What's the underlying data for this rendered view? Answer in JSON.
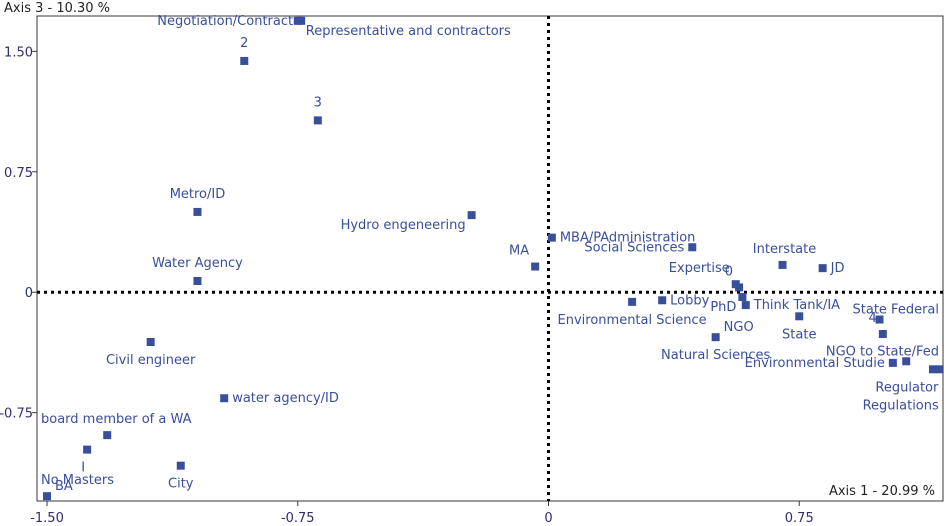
{
  "chart_data": {
    "type": "scatter",
    "xlabel": "Axis 1 - 20.99 %",
    "ylabel": "Axis 3 - 10.30 %",
    "xlim": [
      -1.53,
      1.18
    ],
    "ylim": [
      -1.3,
      1.72
    ],
    "x_ticks": [
      {
        "value": -1.5,
        "label": "-1.50"
      },
      {
        "value": -0.75,
        "label": "-0.75"
      },
      {
        "value": 0,
        "label": "0"
      },
      {
        "value": 0.75,
        "label": "0.75"
      }
    ],
    "y_ticks": [
      {
        "value": 1.5,
        "label": "1.50"
      },
      {
        "value": 0.75,
        "label": "0.75"
      },
      {
        "value": 0,
        "label": "0"
      },
      {
        "value": -0.75,
        "label": "-0.75"
      }
    ],
    "grid": false,
    "points": [
      {
        "label": "Representative and contractors",
        "x": -0.75,
        "y": 1.69,
        "anchor": "right-below"
      },
      {
        "label": "Negotiation/Contract",
        "x": -0.74,
        "y": 1.69,
        "anchor": "left"
      },
      {
        "label": "2",
        "x": -0.91,
        "y": 1.44,
        "anchor": "above"
      },
      {
        "label": "3",
        "x": -0.69,
        "y": 1.07,
        "anchor": "above"
      },
      {
        "label": "Metro/ID",
        "x": -1.05,
        "y": 0.5,
        "anchor": "above"
      },
      {
        "label": "Hydro engeneering",
        "x": -0.23,
        "y": 0.48,
        "anchor": "left-below"
      },
      {
        "label": "MBA/PAdministration",
        "x": 0.01,
        "y": 0.34,
        "anchor": "right"
      },
      {
        "label": "MA",
        "x": -0.04,
        "y": 0.16,
        "anchor": "above-left"
      },
      {
        "label": "Social Sciences",
        "x": 0.43,
        "y": 0.28,
        "anchor": "left"
      },
      {
        "label": "Interstate",
        "x": 0.7,
        "y": 0.17,
        "anchor": "above-right"
      },
      {
        "label": "JD",
        "x": 0.82,
        "y": 0.15,
        "anchor": "right"
      },
      {
        "label": "Expertise",
        "x": 0.56,
        "y": 0.05,
        "anchor": "above-left"
      },
      {
        "label": "0",
        "x": 0.57,
        "y": 0.03,
        "anchor": "above-left"
      },
      {
        "label": "Water Agency",
        "x": -1.05,
        "y": 0.07,
        "anchor": "above"
      },
      {
        "label": "Lobby",
        "x": 0.34,
        "y": -0.05,
        "anchor": "right"
      },
      {
        "label": "Environmental Science",
        "x": 0.25,
        "y": -0.06,
        "anchor": "below"
      },
      {
        "label": "PhD",
        "x": 0.58,
        "y": -0.03,
        "anchor": "left-below"
      },
      {
        "label": "Think Tank/IA",
        "x": 0.59,
        "y": -0.08,
        "anchor": "right"
      },
      {
        "label": "NGO",
        "x": 0.5,
        "y": -0.28,
        "anchor": "right-above"
      },
      {
        "label": "Natural Sciences",
        "x": 0.5,
        "y": -0.28,
        "anchor": "below"
      },
      {
        "label": "State",
        "x": 0.75,
        "y": -0.15,
        "anchor": "below"
      },
      {
        "label": "State Federal",
        "x": 0.99,
        "y": -0.17,
        "anchor": "right-above"
      },
      {
        "label": "4",
        "x": 1.0,
        "y": -0.26,
        "anchor": "above-left"
      },
      {
        "label": "NGO to State/Fed",
        "x": 1.07,
        "y": -0.43,
        "anchor": "right-above"
      },
      {
        "label": "Environmental Studie",
        "x": 1.03,
        "y": -0.44,
        "anchor": "left"
      },
      {
        "label": "Regulator",
        "x": 1.15,
        "y": -0.48,
        "anchor": "below"
      },
      {
        "label": "Regulations",
        "x": 1.17,
        "y": -0.48,
        "anchor": "below-far"
      },
      {
        "label": "Civil engineer",
        "x": -1.19,
        "y": -0.31,
        "anchor": "below"
      },
      {
        "label": "water agency/ID",
        "x": -0.97,
        "y": -0.66,
        "anchor": "right"
      },
      {
        "label": "board member of a WA",
        "x": -1.32,
        "y": -0.89,
        "anchor": "above-right"
      },
      {
        "label": "I",
        "x": -1.38,
        "y": -0.98,
        "anchor": "below-left"
      },
      {
        "label": "City",
        "x": -1.1,
        "y": -1.08,
        "anchor": "below"
      },
      {
        "label": "No Masters",
        "x": -1.5,
        "y": -1.27,
        "anchor": "above-right"
      },
      {
        "label": "BA",
        "x": -1.5,
        "y": -1.27,
        "anchor": "right-above"
      }
    ]
  }
}
